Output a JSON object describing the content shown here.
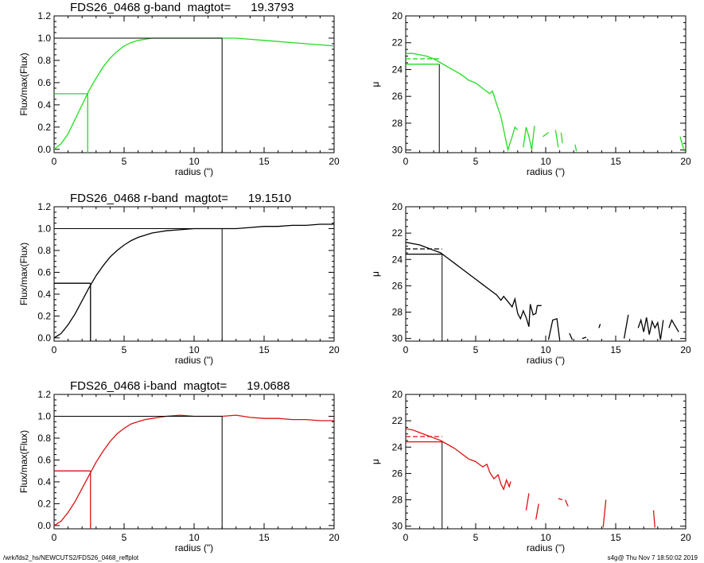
{
  "footer": {
    "left": "/wrk/fds2_hs/NEWCUTS2/FDS26_0468_reffplot",
    "right": "s4g@  Thu Nov  7 18:50:02 2019"
  },
  "chart_data": [
    {
      "type": "line",
      "band": "g",
      "title": "FDS26_0468 g-band  magtot=      19.3793",
      "xlabel": "radius (\")",
      "ylabel": "Flux/max(Flux)",
      "xlim": [
        0,
        20
      ],
      "ylim": [
        -0.03,
        1.2
      ],
      "xticks": [
        0,
        5,
        10,
        15,
        20
      ],
      "yticks": [
        0.0,
        0.2,
        0.4,
        0.6,
        0.8,
        1.0,
        1.2
      ],
      "color": "#22dd22",
      "x": [
        0,
        0.5,
        1,
        1.5,
        2,
        2.5,
        3,
        3.5,
        4,
        4.5,
        5,
        5.5,
        6,
        6.5,
        7,
        7.5,
        8,
        9,
        10,
        11,
        12,
        13,
        14,
        15,
        16,
        17,
        18,
        19,
        20
      ],
      "y": [
        0,
        0.05,
        0.14,
        0.27,
        0.4,
        0.53,
        0.64,
        0.74,
        0.82,
        0.88,
        0.93,
        0.96,
        0.98,
        0.99,
        1.0,
        1.0,
        1.0,
        1.0,
        1.0,
        1.0,
        1.0,
        1.0,
        0.99,
        0.98,
        0.97,
        0.96,
        0.95,
        0.94,
        0.93
      ],
      "half_radius": 2.4,
      "half_level": 0.5,
      "total_radius": 12.0,
      "total_level": 1.0
    },
    {
      "type": "line",
      "band": "g",
      "title": "",
      "xlabel": "radius (\")",
      "ylabel": "μ",
      "xlim": [
        0,
        20
      ],
      "ylim": [
        30.2,
        20
      ],
      "xticks": [
        0,
        5,
        10,
        15,
        20
      ],
      "yticks": [
        20,
        22,
        24,
        26,
        28,
        30
      ],
      "color": "#22dd22",
      "segments": [
        [
          [
            0,
            22.8
          ],
          [
            0.5,
            22.8
          ],
          [
            1,
            22.9
          ],
          [
            1.5,
            23.0
          ],
          [
            2,
            23.2
          ],
          [
            2.5,
            23.5
          ],
          [
            3,
            23.8
          ],
          [
            3.5,
            24.1
          ],
          [
            4,
            24.4
          ],
          [
            4.5,
            24.8
          ],
          [
            5,
            25.0
          ],
          [
            5.5,
            25.4
          ],
          [
            6,
            25.8
          ],
          [
            6.2,
            25.6
          ],
          [
            6.5,
            26.6
          ],
          [
            6.8,
            27.5
          ],
          [
            7.0,
            28.5
          ],
          [
            7.3,
            30.0
          ],
          [
            7.6,
            29.0
          ],
          [
            7.8,
            28.3
          ],
          [
            8.0,
            28.5
          ]
        ],
        [
          [
            8.4,
            29.8
          ],
          [
            8.6,
            28.3
          ],
          [
            8.8,
            29.0
          ],
          [
            9.0,
            30.0
          ],
          [
            9.2,
            28.2
          ]
        ],
        [
          [
            9.8,
            29.0
          ],
          [
            10.2,
            28.7
          ]
        ],
        [
          [
            10.7,
            28.5
          ],
          [
            10.9,
            29.8
          ]
        ],
        [
          [
            11.1,
            28.7
          ],
          [
            11.2,
            29.5
          ]
        ],
        [
          [
            12.1,
            29.6
          ],
          [
            12.2,
            30.1
          ]
        ],
        [
          [
            19.6,
            29.0
          ],
          [
            19.9,
            30.1
          ]
        ]
      ],
      "hline_solid": 23.6,
      "hline_dashed": 23.2,
      "r_eff": 2.4
    },
    {
      "type": "line",
      "band": "r",
      "title": "FDS26_0468 r-band  magtot=      19.1510",
      "xlabel": "radius (\")",
      "ylabel": "Flux/max(Flux)",
      "xlim": [
        0,
        20
      ],
      "ylim": [
        -0.03,
        1.2
      ],
      "xticks": [
        0,
        5,
        10,
        15,
        20
      ],
      "yticks": [
        0.0,
        0.2,
        0.4,
        0.6,
        0.8,
        1.0,
        1.2
      ],
      "color": "#000000",
      "x": [
        0,
        0.5,
        1,
        1.5,
        2,
        2.5,
        3,
        3.5,
        4,
        4.5,
        5,
        5.5,
        6,
        6.5,
        7,
        7.5,
        8,
        9,
        10,
        11,
        12,
        13,
        14,
        15,
        16,
        17,
        18,
        19,
        20
      ],
      "y": [
        0,
        0.04,
        0.12,
        0.22,
        0.34,
        0.46,
        0.57,
        0.66,
        0.74,
        0.8,
        0.85,
        0.89,
        0.92,
        0.94,
        0.96,
        0.97,
        0.98,
        0.99,
        1.0,
        1.0,
        1.0,
        1.0,
        1.01,
        1.02,
        1.02,
        1.03,
        1.03,
        1.04,
        1.04
      ],
      "half_radius": 2.6,
      "half_level": 0.5,
      "total_radius": 12.0,
      "total_level": 1.0
    },
    {
      "type": "line",
      "band": "r",
      "title": "",
      "xlabel": "radius (\")",
      "ylabel": "μ",
      "xlim": [
        0,
        20
      ],
      "ylim": [
        30.2,
        20
      ],
      "xticks": [
        0,
        5,
        10,
        15,
        20
      ],
      "yticks": [
        20,
        22,
        24,
        26,
        28,
        30
      ],
      "color": "#000000",
      "segments": [
        [
          [
            0,
            22.7
          ],
          [
            0.5,
            22.8
          ],
          [
            1,
            22.9
          ],
          [
            1.5,
            23.1
          ],
          [
            2,
            23.3
          ],
          [
            2.5,
            23.5
          ],
          [
            3,
            23.9
          ],
          [
            3.5,
            24.3
          ],
          [
            4,
            24.7
          ],
          [
            4.5,
            25.1
          ],
          [
            5,
            25.5
          ],
          [
            5.5,
            25.9
          ],
          [
            6,
            26.3
          ],
          [
            6.5,
            26.7
          ],
          [
            6.8,
            27.1
          ],
          [
            7.0,
            26.8
          ],
          [
            7.3,
            27.2
          ],
          [
            7.6,
            27.6
          ],
          [
            7.8,
            27.0
          ],
          [
            8.0,
            28.1
          ],
          [
            8.2,
            28.5
          ],
          [
            8.4,
            27.9
          ],
          [
            8.6,
            28.4
          ],
          [
            8.8,
            29.1
          ],
          [
            8.9,
            27.4
          ],
          [
            9.1,
            28.2
          ],
          [
            9.3,
            28.1
          ],
          [
            9.4,
            27.5
          ],
          [
            9.7,
            27.5
          ]
        ],
        [
          [
            10.2,
            30.1
          ],
          [
            10.5,
            28.6
          ],
          [
            10.8,
            28.5
          ],
          [
            11.0,
            30.1
          ]
        ],
        [
          [
            11.7,
            29.6
          ],
          [
            11.9,
            30.1
          ]
        ],
        [
          [
            12.6,
            30.0
          ],
          [
            12.9,
            29.9
          ]
        ],
        [
          [
            13.8,
            29.2
          ],
          [
            13.9,
            28.9
          ]
        ],
        [
          [
            15.6,
            30.0
          ],
          [
            15.9,
            28.2
          ]
        ],
        [
          [
            16.6,
            29.2
          ],
          [
            16.8,
            28.6
          ],
          [
            17.0,
            29.5
          ],
          [
            17.2,
            28.4
          ],
          [
            17.4,
            29.7
          ],
          [
            17.6,
            28.7
          ],
          [
            17.8,
            29.2
          ],
          [
            18.0,
            28.8
          ],
          [
            18.2,
            30.1
          ],
          [
            18.4,
            28.6
          ]
        ],
        [
          [
            18.8,
            29.2
          ],
          [
            19.0,
            28.6
          ],
          [
            19.5,
            29.5
          ]
        ]
      ],
      "hline_solid": 23.6,
      "hline_dashed": 23.2,
      "r_eff": 2.6
    },
    {
      "type": "line",
      "band": "i",
      "title": "FDS26_0468 i-band  magtot=      19.0688",
      "xlabel": "radius (\")",
      "ylabel": "Flux/max(Flux)",
      "xlim": [
        0,
        20
      ],
      "ylim": [
        -0.03,
        1.2
      ],
      "xticks": [
        0,
        5,
        10,
        15,
        20
      ],
      "yticks": [
        0.0,
        0.2,
        0.4,
        0.6,
        0.8,
        1.0,
        1.2
      ],
      "color": "#dd1111",
      "x": [
        0,
        0.5,
        1,
        1.5,
        2,
        2.5,
        3,
        3.5,
        4,
        4.5,
        5,
        5.5,
        6,
        6.5,
        7,
        7.5,
        8,
        9,
        10,
        11,
        12,
        13,
        14,
        15,
        16,
        17,
        18,
        19,
        20
      ],
      "y": [
        0,
        0.04,
        0.12,
        0.22,
        0.34,
        0.46,
        0.58,
        0.68,
        0.77,
        0.84,
        0.89,
        0.93,
        0.95,
        0.97,
        0.98,
        0.99,
        1.0,
        1.01,
        1.0,
        1.0,
        1.0,
        1.01,
        0.99,
        0.98,
        0.98,
        0.97,
        0.97,
        0.96,
        0.96
      ],
      "half_radius": 2.6,
      "half_level": 0.5,
      "total_radius": 12.0,
      "total_level": 1.0
    },
    {
      "type": "line",
      "band": "i",
      "title": "",
      "xlabel": "radius (\")",
      "ylabel": "μ",
      "xlim": [
        0,
        20
      ],
      "ylim": [
        30.2,
        20
      ],
      "xticks": [
        0,
        5,
        10,
        15,
        20
      ],
      "yticks": [
        20,
        22,
        24,
        26,
        28,
        30
      ],
      "color": "#dd1111",
      "segments": [
        [
          [
            0,
            22.6
          ],
          [
            0.5,
            22.7
          ],
          [
            1,
            22.9
          ],
          [
            1.5,
            23.1
          ],
          [
            2,
            23.3
          ],
          [
            2.5,
            23.5
          ],
          [
            3,
            23.8
          ],
          [
            3.5,
            24.1
          ],
          [
            4,
            24.5
          ],
          [
            4.5,
            24.9
          ],
          [
            5,
            25.1
          ],
          [
            5.5,
            25.5
          ],
          [
            5.8,
            25.3
          ],
          [
            6.0,
            25.9
          ],
          [
            6.3,
            26.4
          ],
          [
            6.6,
            26.1
          ],
          [
            6.8,
            26.8
          ],
          [
            7.0,
            27.2
          ],
          [
            7.2,
            26.5
          ],
          [
            7.4,
            27.0
          ],
          [
            7.5,
            26.6
          ]
        ],
        [
          [
            8.6,
            28.8
          ],
          [
            8.8,
            27.5
          ]
        ],
        [
          [
            9.3,
            29.5
          ],
          [
            9.5,
            28.3
          ]
        ],
        [
          [
            10.9,
            27.9
          ],
          [
            11.2,
            28.0
          ]
        ],
        [
          [
            11.4,
            28.0
          ],
          [
            11.6,
            28.5
          ]
        ],
        [
          [
            14.1,
            30.1
          ],
          [
            14.3,
            28.0
          ]
        ],
        [
          [
            17.7,
            28.8
          ],
          [
            17.8,
            30.1
          ]
        ]
      ],
      "hline_solid": 23.6,
      "hline_dashed": 23.2,
      "r_eff": 2.6
    }
  ]
}
